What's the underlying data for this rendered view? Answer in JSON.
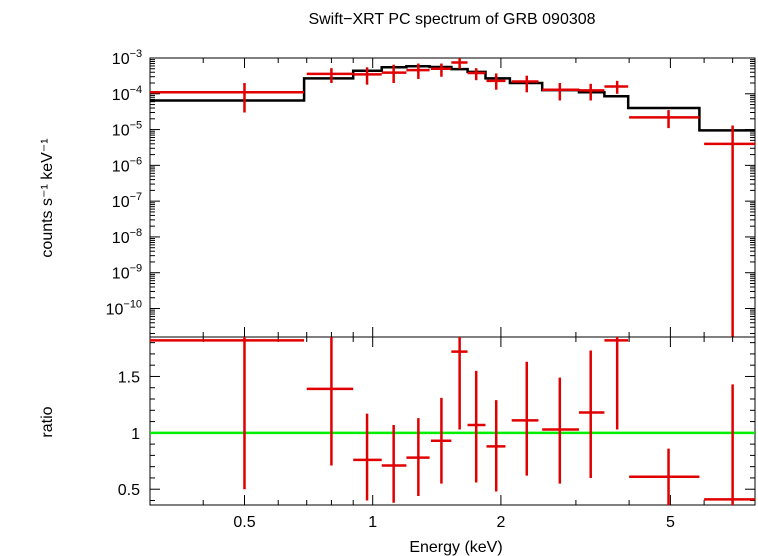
{
  "chart_data": [
    {
      "type": "line",
      "title": "Swift−XRT PC spectrum of GRB 090308",
      "xlabel": "",
      "ylabel": "counts s⁻¹ keV⁻¹",
      "xscale": "log",
      "yscale": "log",
      "xlim": [
        0.3,
        7.9
      ],
      "ylim": [
        1.6e-11,
        0.001
      ],
      "y_ticks": [
        {
          "value": 0.001,
          "base": "10",
          "exp": "−3"
        },
        {
          "value": 0.0001,
          "base": "10",
          "exp": "−4"
        },
        {
          "value": 1e-05,
          "base": "10",
          "exp": "−5"
        },
        {
          "value": 1e-06,
          "base": "10",
          "exp": "−6"
        },
        {
          "value": 1e-07,
          "base": "10",
          "exp": "−7"
        },
        {
          "value": 1e-08,
          "base": "10",
          "exp": "−8"
        },
        {
          "value": 1e-09,
          "base": "10",
          "exp": "−9"
        },
        {
          "value": 1e-10,
          "base": "10",
          "exp": "−10"
        }
      ],
      "data_color": "#e00000",
      "model_color": "#000000",
      "data": [
        {
          "x": 0.5,
          "xlo": 0.3,
          "xhi": 0.69,
          "y": 0.00011,
          "ylo": 3e-05,
          "yhi": 0.0002
        },
        {
          "x": 0.8,
          "xlo": 0.7,
          "xhi": 0.9,
          "y": 0.00036,
          "ylo": 0.0002,
          "yhi": 0.00052
        },
        {
          "x": 0.97,
          "xlo": 0.9,
          "xhi": 1.05,
          "y": 0.00035,
          "ylo": 0.00018,
          "yhi": 0.00055
        },
        {
          "x": 1.12,
          "xlo": 1.05,
          "xhi": 1.2,
          "y": 0.00039,
          "ylo": 0.0002,
          "yhi": 0.00065
        },
        {
          "x": 1.28,
          "xlo": 1.2,
          "xhi": 1.36,
          "y": 0.00046,
          "ylo": 0.00026,
          "yhi": 0.0007
        },
        {
          "x": 1.45,
          "xlo": 1.37,
          "xhi": 1.53,
          "y": 0.0005,
          "ylo": 0.0003,
          "yhi": 0.0007
        },
        {
          "x": 1.6,
          "xlo": 1.53,
          "xhi": 1.67,
          "y": 0.00075,
          "ylo": 0.0005,
          "yhi": 0.001
        },
        {
          "x": 1.75,
          "xlo": 1.67,
          "xhi": 1.84,
          "y": 0.00038,
          "ylo": 0.00024,
          "yhi": 0.00052
        },
        {
          "x": 1.95,
          "xlo": 1.85,
          "xhi": 2.05,
          "y": 0.00023,
          "ylo": 0.00013,
          "yhi": 0.00037
        },
        {
          "x": 2.3,
          "xlo": 2.12,
          "xhi": 2.45,
          "y": 0.00022,
          "ylo": 0.00011,
          "yhi": 0.00032
        },
        {
          "x": 2.75,
          "xlo": 2.5,
          "xhi": 3.05,
          "y": 0.00013,
          "ylo": 6.5e-05,
          "yhi": 0.0002
        },
        {
          "x": 3.25,
          "xlo": 3.05,
          "xhi": 3.5,
          "y": 0.000125,
          "ylo": 6.5e-05,
          "yhi": 0.00019
        },
        {
          "x": 3.75,
          "xlo": 3.5,
          "xhi": 3.98,
          "y": 0.00016,
          "ylo": 0.0001,
          "yhi": 0.00023
        },
        {
          "x": 4.95,
          "xlo": 4.0,
          "xhi": 5.85,
          "y": 2.2e-05,
          "ylo": 1.1e-05,
          "yhi": 3.5e-05
        },
        {
          "x": 7.0,
          "xlo": 6.0,
          "xhi": 7.9,
          "y": 4e-06,
          "ylo": 1.6e-11,
          "yhi": 1.3e-05
        }
      ],
      "model": [
        {
          "xlo": 0.3,
          "xhi": 0.69,
          "y": 6.5e-05
        },
        {
          "xlo": 0.69,
          "xhi": 0.9,
          "y": 0.00027
        },
        {
          "xlo": 0.9,
          "xhi": 1.05,
          "y": 0.00044
        },
        {
          "xlo": 1.05,
          "xhi": 1.2,
          "y": 0.00055
        },
        {
          "xlo": 1.2,
          "xhi": 1.36,
          "y": 0.00059
        },
        {
          "xlo": 1.36,
          "xhi": 1.53,
          "y": 0.00056
        },
        {
          "xlo": 1.53,
          "xhi": 1.67,
          "y": 0.00049
        },
        {
          "xlo": 1.67,
          "xhi": 1.84,
          "y": 0.00041
        },
        {
          "xlo": 1.84,
          "xhi": 2.1,
          "y": 0.00027
        },
        {
          "xlo": 2.1,
          "xhi": 2.5,
          "y": 0.0002
        },
        {
          "xlo": 2.5,
          "xhi": 3.05,
          "y": 0.000127
        },
        {
          "xlo": 3.05,
          "xhi": 3.5,
          "y": 0.00011
        },
        {
          "xlo": 3.5,
          "xhi": 3.98,
          "y": 8.5e-05
        },
        {
          "xlo": 3.98,
          "xhi": 5.85,
          "y": 4e-05
        },
        {
          "xlo": 5.85,
          "xhi": 7.9,
          "y": 9.5e-06
        }
      ]
    },
    {
      "type": "scatter",
      "title": "",
      "xlabel": "Energy (keV)",
      "ylabel": "ratio",
      "xscale": "log",
      "xlim": [
        0.3,
        7.9
      ],
      "ylim": [
        0.36,
        1.85
      ],
      "y_tick_labels": [
        "0.5",
        "1",
        "1.5"
      ],
      "y_tick_values": [
        0.5,
        1.0,
        1.5
      ],
      "x_tick_labels": [
        "0.5",
        "1",
        "2",
        "5"
      ],
      "x_tick_values": [
        0.5,
        1,
        2,
        5
      ],
      "reference_line": {
        "y": 1.0,
        "color": "#00ee00"
      },
      "data_color": "#e00000",
      "data": [
        {
          "x": 0.5,
          "xlo": 0.3,
          "xhi": 0.69,
          "y": 1.82,
          "ylo": 0.5,
          "yhi": 1.85
        },
        {
          "x": 0.8,
          "xlo": 0.7,
          "xhi": 0.9,
          "y": 1.39,
          "ylo": 0.71,
          "yhi": 1.85
        },
        {
          "x": 0.97,
          "xlo": 0.9,
          "xhi": 1.05,
          "y": 0.76,
          "ylo": 0.4,
          "yhi": 1.17
        },
        {
          "x": 1.12,
          "xlo": 1.05,
          "xhi": 1.2,
          "y": 0.71,
          "ylo": 0.38,
          "yhi": 1.07
        },
        {
          "x": 1.28,
          "xlo": 1.2,
          "xhi": 1.36,
          "y": 0.78,
          "ylo": 0.44,
          "yhi": 1.13
        },
        {
          "x": 1.45,
          "xlo": 1.37,
          "xhi": 1.53,
          "y": 0.93,
          "ylo": 0.55,
          "yhi": 1.31
        },
        {
          "x": 1.6,
          "xlo": 1.53,
          "xhi": 1.67,
          "y": 1.72,
          "ylo": 1.03,
          "yhi": 1.85
        },
        {
          "x": 1.75,
          "xlo": 1.67,
          "xhi": 1.84,
          "y": 1.07,
          "ylo": 0.56,
          "yhi": 1.55
        },
        {
          "x": 1.95,
          "xlo": 1.85,
          "xhi": 2.05,
          "y": 0.88,
          "ylo": 0.48,
          "yhi": 1.29
        },
        {
          "x": 2.3,
          "xlo": 2.12,
          "xhi": 2.45,
          "y": 1.11,
          "ylo": 0.62,
          "yhi": 1.63
        },
        {
          "x": 2.75,
          "xlo": 2.5,
          "xhi": 3.05,
          "y": 1.03,
          "ylo": 0.55,
          "yhi": 1.49
        },
        {
          "x": 3.25,
          "xlo": 3.05,
          "xhi": 3.5,
          "y": 1.18,
          "ylo": 0.6,
          "yhi": 1.73
        },
        {
          "x": 3.75,
          "xlo": 3.5,
          "xhi": 3.98,
          "y": 1.82,
          "ylo": 1.03,
          "yhi": 1.85
        },
        {
          "x": 4.95,
          "xlo": 4.0,
          "xhi": 5.85,
          "y": 0.61,
          "ylo": 0.36,
          "yhi": 0.86
        },
        {
          "x": 7.0,
          "xlo": 6.0,
          "xhi": 7.9,
          "y": 0.41,
          "ylo": 0.36,
          "yhi": 1.43
        }
      ]
    }
  ]
}
